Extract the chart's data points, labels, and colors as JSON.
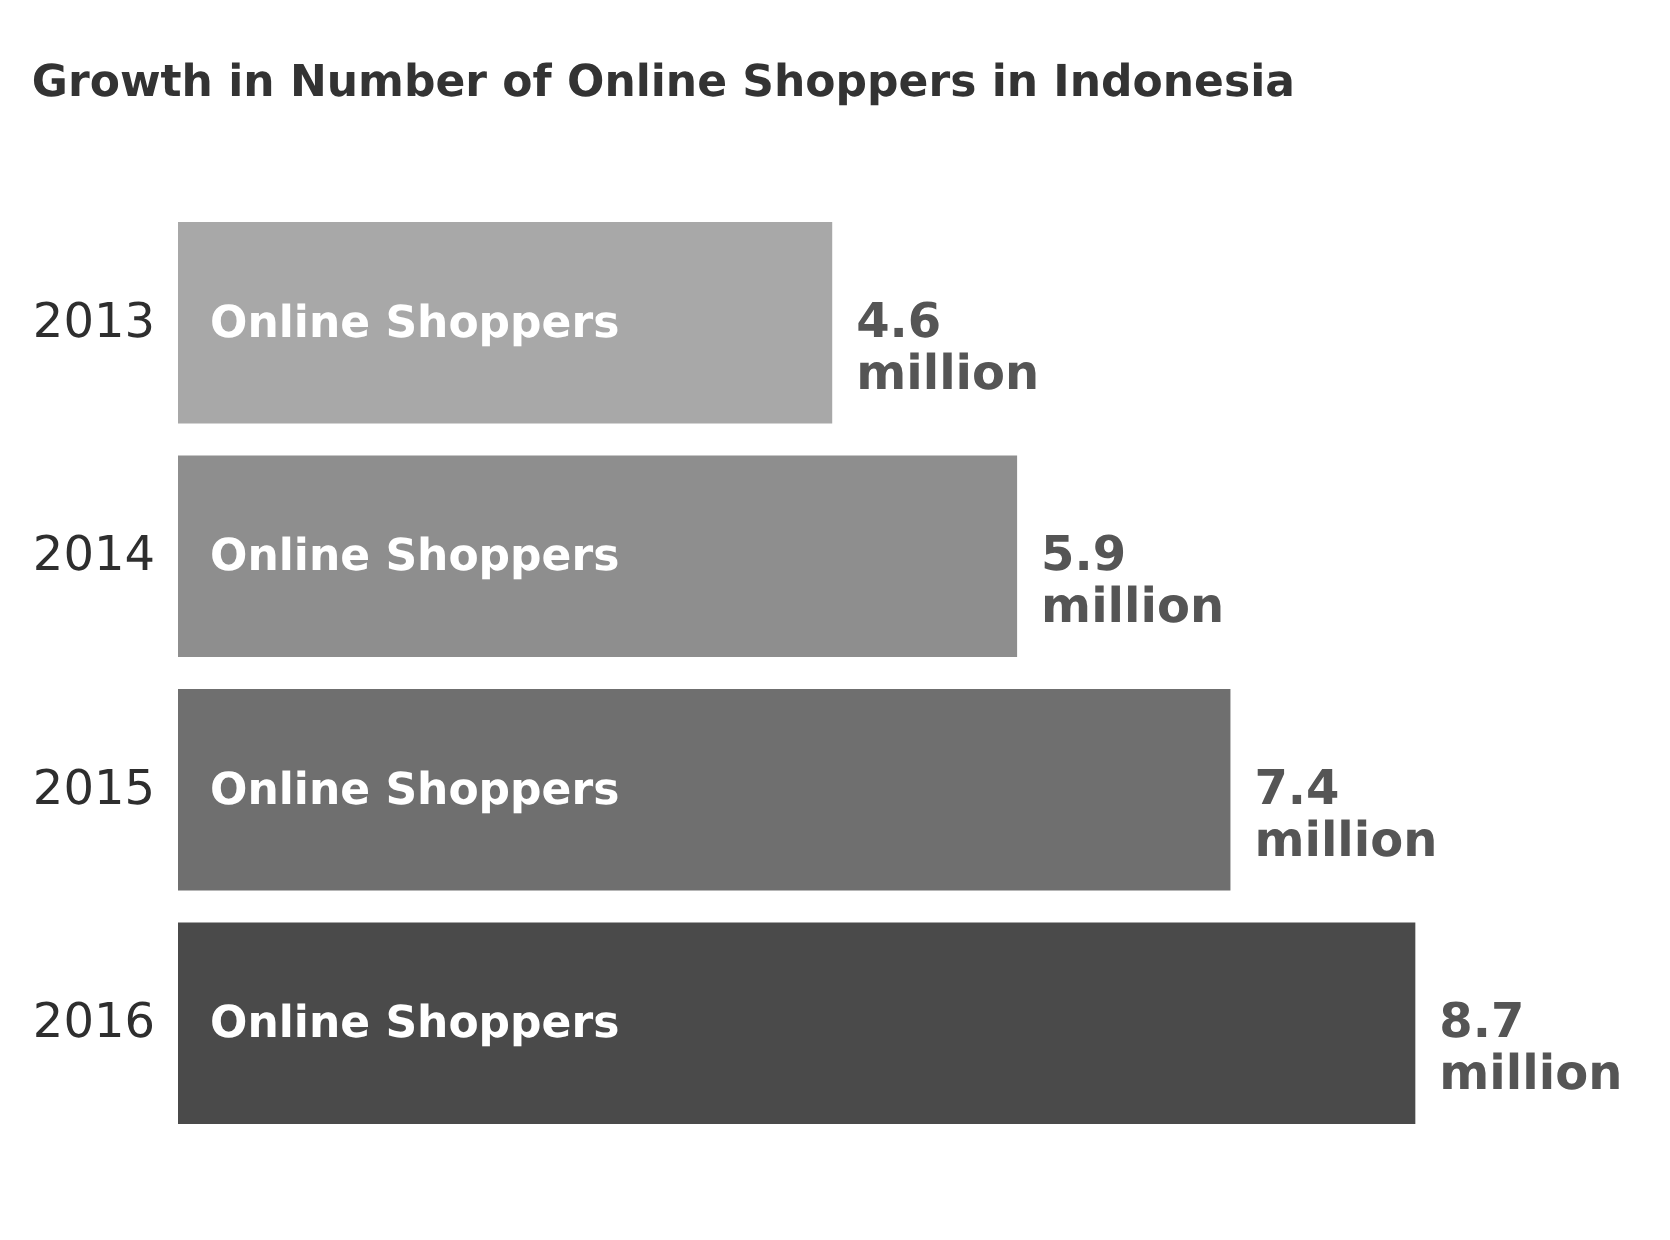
{
  "chart_data": {
    "type": "bar",
    "orientation": "horizontal",
    "title": "Growth in Number of Online Shoppers in Indonesia",
    "categories": [
      "2013",
      "2014",
      "2015",
      "2016"
    ],
    "values": [
      4.6,
      5.9,
      7.4,
      8.7
    ],
    "colors": [
      "#a8a8a8",
      "#8e8e8e",
      "#6f6f6f",
      "#4a4a4a"
    ],
    "value_labels": [
      "4.6 million",
      "5.9 million",
      "7.4 million",
      "8.7 million"
    ],
    "annotations": [
      "Online Shoppers",
      "Online Shoppers",
      "Online Shoppers",
      "Online Shoppers"
    ]
  }
}
